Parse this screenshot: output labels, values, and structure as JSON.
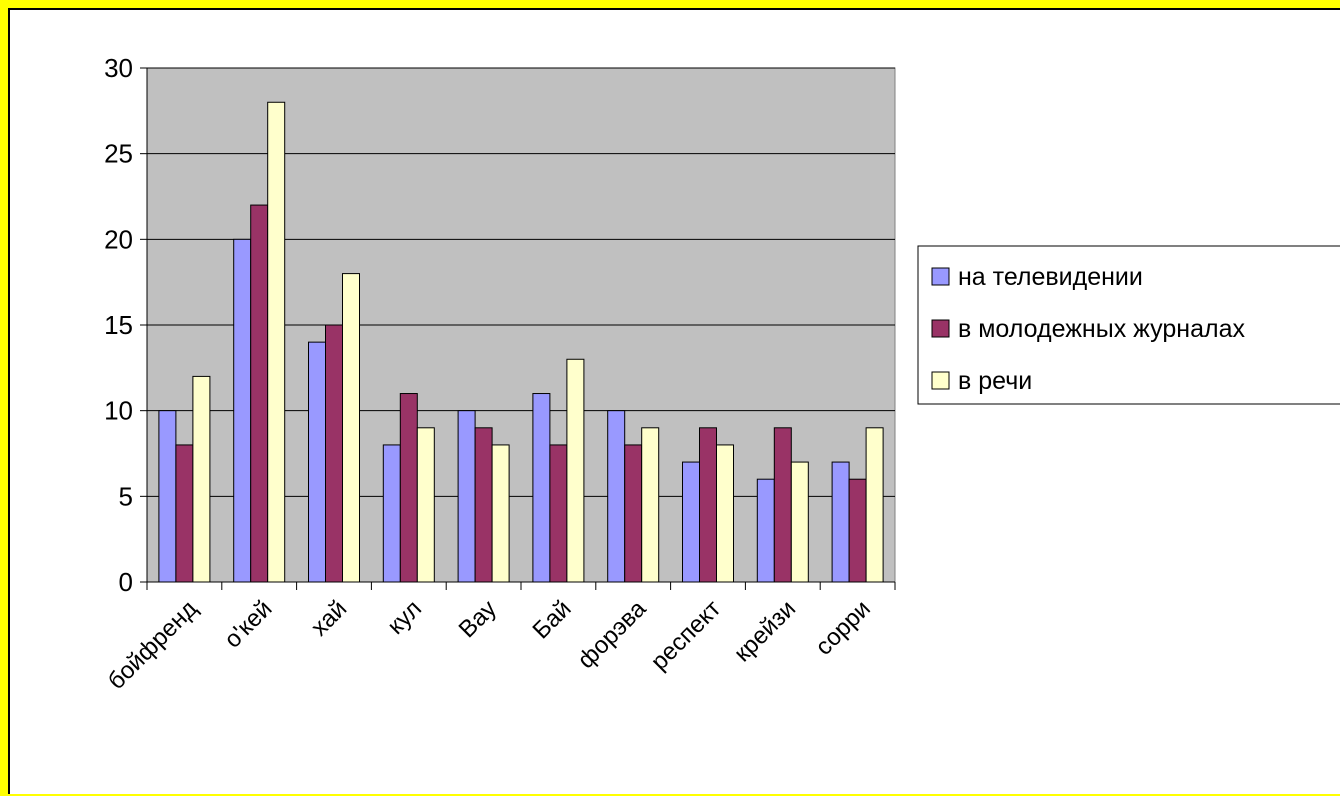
{
  "colors": {
    "page_background": "#ffff00",
    "plot_background": "#c0c0c0",
    "gridline": "#000000",
    "series": [
      "#9999ff",
      "#993366",
      "#ffffcc"
    ]
  },
  "chart_data": {
    "type": "bar",
    "title": "",
    "xlabel": "",
    "ylabel": "",
    "ylim": [
      0,
      30
    ],
    "yticks": [
      0,
      5,
      10,
      15,
      20,
      25,
      30
    ],
    "grid": true,
    "legend_position": "right",
    "categories": [
      "бойфренд",
      "о'кей",
      "хай",
      "кул",
      "Вау",
      "Бай",
      "форэва",
      "респект",
      "крейзи",
      "сорри"
    ],
    "series": [
      {
        "name": "на телевидении",
        "values": [
          10,
          20,
          14,
          8,
          10,
          11,
          10,
          7,
          6,
          7
        ]
      },
      {
        "name": "в молодежных журналах",
        "values": [
          8,
          22,
          15,
          11,
          9,
          8,
          8,
          9,
          9,
          6
        ]
      },
      {
        "name": "в речи",
        "values": [
          12,
          28,
          18,
          9,
          8,
          13,
          9,
          8,
          7,
          9
        ]
      }
    ]
  }
}
